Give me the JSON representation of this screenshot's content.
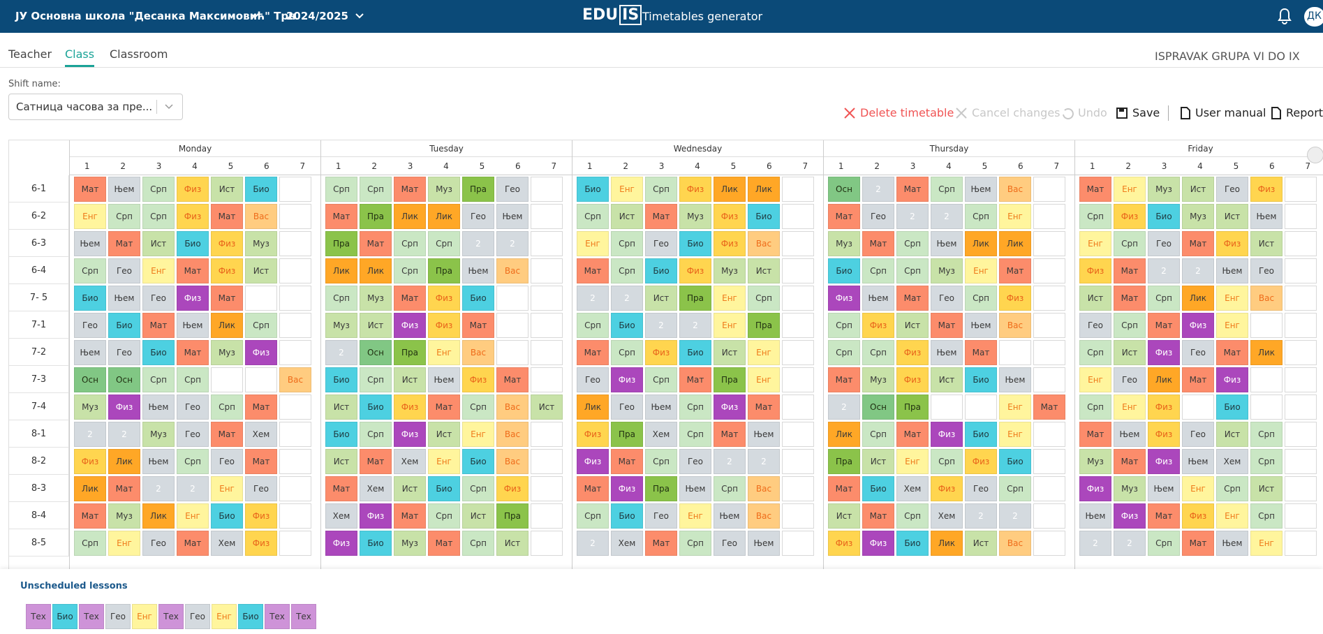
{
  "header": {
    "school": "ЈУ Основна школа \"Десанка Максимовић\" Трн",
    "year": "2024/2025",
    "logo_left": "EDU",
    "logo_right": "IS",
    "app_title": "Timetables generator",
    "avatar": "ДК"
  },
  "tabs": {
    "items": [
      "Teacher",
      "Class",
      "Classroom"
    ],
    "active": 1
  },
  "group_title": "ISPRAVAK GRUPA VI DO IX",
  "shift": {
    "label": "Shift name:",
    "value": "Сатница часова за пре..."
  },
  "toolbar": {
    "delete": "Delete timetable",
    "cancel": "Cancel changes",
    "undo": "Undo",
    "save": "Save",
    "manual": "User manual",
    "reports": "Reports"
  },
  "palette": {
    "Мат": {
      "fill": "#fc8c6b",
      "ink": "#3a3a3a"
    },
    "Њем": {
      "fill": "#d4dadf",
      "ink": "#3a3a3a"
    },
    "Срп": {
      "fill": "#cae7c4",
      "ink": "#3a3a3a"
    },
    "Физ": {
      "fill": "#ffd54f",
      "ink": "#e8621a"
    },
    "Ист": {
      "fill": "#c8e2a8",
      "ink": "#3a3a3a"
    },
    "Био": {
      "fill": "#4dd0e1",
      "ink": "#1f3a40"
    },
    "Енг": {
      "fill": "#fff59d",
      "ink": "#ef7a1a"
    },
    "Вас": {
      "fill": "#ffcc80",
      "ink": "#ef6c1a"
    },
    "Гео": {
      "fill": "#d4dadf",
      "ink": "#3a3a3a"
    },
    "Муз": {
      "fill": "#c8e2a8",
      "ink": "#3a3a3a"
    },
    "Лик": {
      "fill": "#ffa726",
      "ink": "#3a3a3a"
    },
    "Пра": {
      "fill": "#8bc34a",
      "ink": "#1f2f10"
    },
    "Осн": {
      "fill": "#81c784",
      "ink": "#1f2f10"
    },
    "Хем": {
      "fill": "#d4dadf",
      "ink": "#3a3a3a"
    },
    "2": {
      "fill": "#d4dadf",
      "ink": "#ffffff"
    },
    "Тех": {
      "fill": "#ce93d8",
      "ink": "#3a3a3a"
    }
  },
  "timetable": {
    "classes": [
      "6-1",
      "6-2",
      "6-3",
      "6-4",
      "7- 5",
      "7-1",
      "7-2",
      "7-3",
      "7-4",
      "8-1",
      "8-2",
      "8-3",
      "8-4",
      "8-5"
    ],
    "days": [
      {
        "name": "Monday",
        "periods": [
          1,
          2,
          3,
          4,
          5,
          6,
          7
        ],
        "cells": [
          [
            "Мат",
            "Њем",
            "Срп",
            "Физ",
            "Ист",
            "Био",
            null
          ],
          [
            "Енг",
            "Срп",
            "Срп",
            "Физ",
            "Мат",
            "Вас",
            null
          ],
          [
            "Њем",
            "Мат",
            "Ист",
            "Био",
            "Физ",
            "Муз",
            null
          ],
          [
            "Срп",
            "Гео",
            "Енг",
            "Мат",
            "Физ",
            "Ист",
            null
          ],
          [
            "Био",
            "Њем",
            "Гео",
            {
              "text": "Физ",
              "color": "#ab47bc"
            },
            "Мат",
            null,
            null
          ],
          [
            "Гео",
            "Био",
            "Мат",
            "Њем",
            "Лик",
            "Срп",
            null
          ],
          [
            "Њем",
            "Гео",
            "Био",
            "Мат",
            "Муз",
            {
              "text": "Физ",
              "color": "#ab47bc"
            },
            null
          ],
          [
            "Осн",
            "Осн",
            "Срп",
            "Срп",
            null,
            null,
            "Вас"
          ],
          [
            "Муз",
            {
              "text": "Физ",
              "color": "#ab47bc"
            },
            "Њем",
            "Гео",
            "Срп",
            "Мат",
            null
          ],
          [
            "2",
            "2",
            "Муз",
            "Гео",
            "Мат",
            "Хем",
            null
          ],
          [
            "Физ",
            "Лик",
            "Њем",
            "Срп",
            "Гео",
            "Мат",
            null
          ],
          [
            "Лик",
            "Мат",
            "2",
            "2",
            "Енг",
            "Гео",
            null
          ],
          [
            "Мат",
            "Муз",
            "Лик",
            "Енг",
            "Био",
            "Физ",
            null
          ],
          [
            "Срп",
            "Енг",
            "Гео",
            "Мат",
            "Хем",
            "Физ",
            null
          ]
        ]
      },
      {
        "name": "Tuesday",
        "periods": [
          1,
          2,
          3,
          4,
          5,
          6,
          7
        ],
        "cells": [
          [
            "Срп",
            "Срп",
            "Мат",
            "Муз",
            "Пра",
            "Гео",
            null
          ],
          [
            "Мат",
            "Пра",
            "Лик",
            "Лик",
            "Гео",
            "Њем",
            null
          ],
          [
            "Пра",
            "Мат",
            "Срп",
            "Срп",
            "2",
            "2",
            null
          ],
          [
            "Лик",
            "Лик",
            "Срп",
            "Пра",
            "Њем",
            "Вас",
            null
          ],
          [
            "Срп",
            "Муз",
            "Мат",
            "Физ",
            "Био",
            null,
            null
          ],
          [
            "Муз",
            "Ист",
            {
              "text": "Физ",
              "color": "#ab47bc"
            },
            "Физ",
            "Мат",
            null,
            null
          ],
          [
            "2",
            "Осн",
            "Пра",
            "Енг",
            "Вас",
            null,
            null
          ],
          [
            "Био",
            "Срп",
            "Ист",
            "Њем",
            "Физ",
            "Мат",
            null
          ],
          [
            "Ист",
            "Био",
            "Физ",
            "Мат",
            "Срп",
            "Вас",
            "Ист"
          ],
          [
            "Био",
            "Срп",
            {
              "text": "Физ",
              "color": "#ab47bc"
            },
            "Ист",
            "Енг",
            "Вас",
            null
          ],
          [
            "Ист",
            "Мат",
            "Хем",
            "Енг",
            "Био",
            "Вас",
            null
          ],
          [
            "Мат",
            "Хем",
            "Ист",
            "Био",
            "Срп",
            "Физ",
            null
          ],
          [
            "Хем",
            {
              "text": "Физ",
              "color": "#ab47bc"
            },
            "Мат",
            "Срп",
            "Ист",
            "Пра",
            null
          ],
          [
            {
              "text": "Физ",
              "color": "#ab47bc"
            },
            "Био",
            "Муз",
            "Мат",
            "Срп",
            "Ист",
            null
          ]
        ]
      },
      {
        "name": "Wednesday",
        "periods": [
          1,
          2,
          3,
          4,
          5,
          6,
          7
        ],
        "cells": [
          [
            "Био",
            "Енг",
            "Срп",
            "Физ",
            "Лик",
            "Лик",
            null
          ],
          [
            "Срп",
            "Ист",
            "Мат",
            "Муз",
            "Физ",
            "Био",
            null
          ],
          [
            "Енг",
            "Срп",
            "Гео",
            "Био",
            "Физ",
            "Вас",
            null
          ],
          [
            "Мат",
            "Срп",
            "Био",
            "Физ",
            "Муз",
            "Ист",
            null
          ],
          [
            "2",
            "2",
            "Ист",
            "Пра",
            "Енг",
            "Срп",
            null
          ],
          [
            "Срп",
            "Био",
            "2",
            "2",
            "Енг",
            "Пра",
            null
          ],
          [
            "Мат",
            "Срп",
            "Физ",
            "Био",
            "Ист",
            "Енг",
            null
          ],
          [
            "Гео",
            {
              "text": "Физ",
              "color": "#ab47bc"
            },
            "Срп",
            "Мат",
            "Пра",
            "Енг",
            null
          ],
          [
            "Лик",
            "Гео",
            "Њем",
            "Срп",
            {
              "text": "Физ",
              "color": "#ab47bc"
            },
            "Мат",
            null
          ],
          [
            "Физ",
            "Пра",
            "Хем",
            "Срп",
            "Мат",
            "Њем",
            null
          ],
          [
            {
              "text": "Физ",
              "color": "#ab47bc"
            },
            "Мат",
            "Срп",
            "Гео",
            "2",
            "2",
            null
          ],
          [
            "Мат",
            {
              "text": "Физ",
              "color": "#ab47bc"
            },
            "Пра",
            "Њем",
            "Срп",
            "Вас",
            null
          ],
          [
            "Срп",
            "Био",
            "Гео",
            "Енг",
            "Њем",
            "Вас",
            null
          ],
          [
            "2",
            "Хем",
            "Мат",
            "Срп",
            "Гео",
            "Њем",
            null
          ]
        ]
      },
      {
        "name": "Thursday",
        "periods": [
          1,
          2,
          3,
          4,
          5,
          6,
          7
        ],
        "cells": [
          [
            "Осн",
            "2",
            "Мат",
            "Срп",
            "Њем",
            "Вас",
            null
          ],
          [
            "Мат",
            "Гео",
            "2",
            "2",
            "Срп",
            "Енг",
            null
          ],
          [
            "Муз",
            "Мат",
            "Срп",
            "Њем",
            "Лик",
            "Лик",
            null
          ],
          [
            "Био",
            "Срп",
            "Срп",
            "Муз",
            "Енг",
            "Мат",
            null
          ],
          [
            {
              "text": "Физ",
              "color": "#ab47bc"
            },
            "Њем",
            "Мат",
            "Гео",
            "Срп",
            "Физ",
            null
          ],
          [
            "Срп",
            "Физ",
            "Ист",
            "Мат",
            "Њем",
            "Вас",
            null
          ],
          [
            "Срп",
            "Срп",
            "Физ",
            "Њем",
            "Мат",
            null,
            null
          ],
          [
            "Мат",
            "Муз",
            "Физ",
            "Ист",
            "Био",
            "Њем",
            null
          ],
          [
            "2",
            "Осн",
            "Пра",
            null,
            null,
            "Енг",
            "Мат"
          ],
          [
            "Лик",
            "Срп",
            "Мат",
            {
              "text": "Физ",
              "color": "#ab47bc"
            },
            "Био",
            "Енг",
            null
          ],
          [
            "Пра",
            "Ист",
            "Енг",
            "Срп",
            "Физ",
            "Био",
            null
          ],
          [
            "Мат",
            "Био",
            "Хем",
            "Физ",
            "Гео",
            "Срп",
            null
          ],
          [
            "Ист",
            "Мат",
            "Срп",
            "Хем",
            "2",
            "2",
            null
          ],
          [
            "Физ",
            {
              "text": "Физ",
              "color": "#ab47bc"
            },
            "Био",
            "Лик",
            "Ист",
            "Вас",
            null
          ]
        ]
      },
      {
        "name": "Friday",
        "periods": [
          1,
          2,
          3,
          4,
          5,
          6,
          7
        ],
        "cells": [
          [
            "Мат",
            "Енг",
            "Муз",
            "Ист",
            "Гео",
            "Физ",
            null
          ],
          [
            "Срп",
            "Физ",
            "Био",
            "Муз",
            "Ист",
            "Њем",
            null
          ],
          [
            "Енг",
            "Срп",
            "Гео",
            "Мат",
            "Физ",
            "Ист",
            null
          ],
          [
            "Физ",
            "Мат",
            "2",
            "2",
            "Њем",
            "Гео",
            null
          ],
          [
            "Ист",
            "Мат",
            "Срп",
            "Лик",
            "Енг",
            "Вас",
            null
          ],
          [
            "Гео",
            "Срп",
            "Мат",
            {
              "text": "Физ",
              "color": "#ab47bc"
            },
            "Енг",
            null,
            null
          ],
          [
            "Срп",
            "Ист",
            {
              "text": "Физ",
              "color": "#ab47bc"
            },
            "Гео",
            "Мат",
            "Лик",
            null
          ],
          [
            "Енг",
            "Гео",
            "Лик",
            "Мат",
            {
              "text": "Физ",
              "color": "#ab47bc"
            },
            null,
            null
          ],
          [
            "Срп",
            "Енг",
            "Физ",
            null,
            "Био",
            null,
            null
          ],
          [
            "Мат",
            "Њем",
            "Физ",
            "Гео",
            "Ист",
            "Срп",
            null
          ],
          [
            "Муз",
            "Мат",
            {
              "text": "Физ",
              "color": "#ab47bc"
            },
            "Њем",
            "Хем",
            "Срп",
            null
          ],
          [
            {
              "text": "Физ",
              "color": "#ab47bc"
            },
            "Муз",
            "Њем",
            "Енг",
            "Срп",
            "Ист",
            null
          ],
          [
            "Њем",
            {
              "text": "Физ",
              "color": "#ab47bc"
            },
            "Мат",
            "Физ",
            "Енг",
            "Срп",
            null
          ],
          [
            "2",
            "2",
            "Срп",
            "Мат",
            "Њем",
            "Енг",
            null
          ]
        ]
      }
    ]
  },
  "unscheduled": {
    "title": "Unscheduled lessons",
    "items": [
      "Тех",
      "Био",
      "Тех",
      "Гео",
      "Енг",
      "Тех",
      "Гео",
      "Енг",
      "Био",
      "Тех",
      "Тех"
    ]
  }
}
